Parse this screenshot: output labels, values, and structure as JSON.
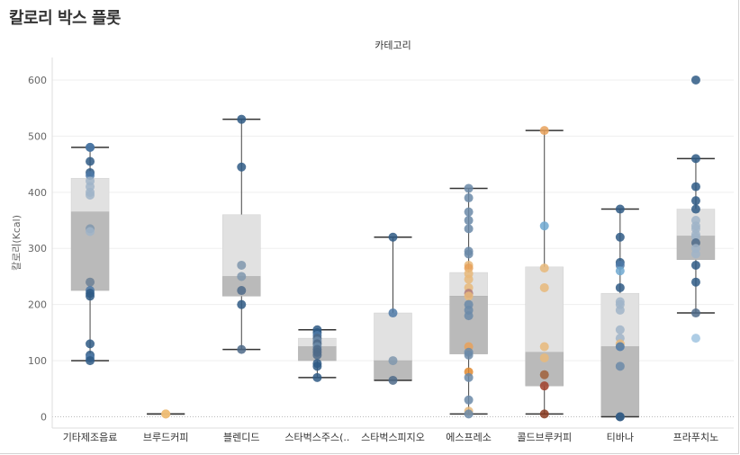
{
  "title": "칼로리 박스 플롯",
  "chart_data": {
    "type": "box",
    "column_header": "카테고리",
    "ylabel": "칼로리(Kcal)",
    "ylim": [
      -20,
      640
    ],
    "yticks": [
      0,
      100,
      200,
      300,
      400,
      500,
      600
    ],
    "grid": true,
    "categories": [
      "기타제조음료",
      "브루드커피",
      "블렌디드",
      "스타벅스주스(..",
      "스타벅스피지오",
      "에스프레소",
      "콜드브루커피",
      "티바나",
      "프라푸치노"
    ],
    "boxes": [
      {
        "min": 100,
        "q1": 225,
        "median": 365,
        "q3": 425,
        "max": 480
      },
      {
        "min": 5,
        "q1": 5,
        "median": 5,
        "q3": 5,
        "max": 5
      },
      {
        "min": 120,
        "q1": 215,
        "median": 250,
        "q3": 360,
        "max": 530
      },
      {
        "min": 70,
        "q1": 100,
        "median": 125,
        "q3": 140,
        "max": 155
      },
      {
        "min": 65,
        "q1": 65,
        "median": 100,
        "q3": 185,
        "max": 320
      },
      {
        "min": 5,
        "q1": 112,
        "median": 215,
        "q3": 257,
        "max": 407
      },
      {
        "min": 5,
        "q1": 55,
        "median": 115,
        "q3": 267,
        "max": 510
      },
      {
        "min": 0,
        "q1": 0,
        "median": 125,
        "q3": 220,
        "max": 370
      },
      {
        "min": 185,
        "q1": 280,
        "median": 322,
        "q3": 370,
        "max": 460
      }
    ],
    "points": [
      [
        [
          480,
          "#2f5a85"
        ],
        [
          480,
          "#4e79a7"
        ],
        [
          455,
          "#2f5a85"
        ],
        [
          435,
          "#2f5a85"
        ],
        [
          430,
          "#4e79a7"
        ],
        [
          420,
          "#a0b4c8"
        ],
        [
          410,
          "#a0b4c8"
        ],
        [
          400,
          "#a0b4c8"
        ],
        [
          395,
          "#a0b4c8"
        ],
        [
          335,
          "#7f96ad"
        ],
        [
          330,
          "#a0b4c8"
        ],
        [
          240,
          "#6b7f94"
        ],
        [
          225,
          "#4e79a7"
        ],
        [
          220,
          "#2f5a85"
        ],
        [
          215,
          "#2f5a85"
        ],
        [
          130,
          "#2f5a85"
        ],
        [
          110,
          "#2f5a85"
        ],
        [
          105,
          "#4e79a7"
        ],
        [
          100,
          "#2f5a85"
        ]
      ],
      [
        [
          5,
          "#e8a15a"
        ],
        [
          5,
          "#f0c27a"
        ]
      ],
      [
        [
          530,
          "#2f5a85"
        ],
        [
          445,
          "#2f5a85"
        ],
        [
          270,
          "#7f96ad"
        ],
        [
          250,
          "#7f96ad"
        ],
        [
          225,
          "#4e6a88"
        ],
        [
          200,
          "#2f5a85"
        ],
        [
          120,
          "#4e6a88"
        ]
      ],
      [
        [
          155,
          "#2f5a85"
        ],
        [
          150,
          "#2f5a85"
        ],
        [
          145,
          "#4e79a7"
        ],
        [
          140,
          "#4e6a88"
        ],
        [
          135,
          "#6b8aa8"
        ],
        [
          130,
          "#4e6a88"
        ],
        [
          125,
          "#6b8aa8"
        ],
        [
          120,
          "#4e6a88"
        ],
        [
          115,
          "#4e6a88"
        ],
        [
          110,
          "#4e6a88"
        ],
        [
          95,
          "#2f5a85"
        ],
        [
          90,
          "#2f5a85"
        ],
        [
          70,
          "#2f5a85"
        ]
      ],
      [
        [
          320,
          "#2f5a85"
        ],
        [
          185,
          "#4e79a7"
        ],
        [
          100,
          "#7f96ad"
        ],
        [
          65,
          "#4e6a88"
        ]
      ],
      [
        [
          407,
          "#6b8aa8"
        ],
        [
          390,
          "#6b8aa8"
        ],
        [
          365,
          "#6b8aa8"
        ],
        [
          350,
          "#6b8aa8"
        ],
        [
          335,
          "#6b8aa8"
        ],
        [
          295,
          "#6b8aa8"
        ],
        [
          290,
          "#6b8aa8"
        ],
        [
          270,
          "#e8b87a"
        ],
        [
          265,
          "#e8a15a"
        ],
        [
          255,
          "#e8b87a"
        ],
        [
          245,
          "#e8b87a"
        ],
        [
          230,
          "#e8b87a"
        ],
        [
          220,
          "#b07a7a"
        ],
        [
          215,
          "#e8b87a"
        ],
        [
          200,
          "#6b8aa8"
        ],
        [
          190,
          "#6b8aa8"
        ],
        [
          180,
          "#6b8aa8"
        ],
        [
          125,
          "#e8a15a"
        ],
        [
          115,
          "#6b8aa8"
        ],
        [
          110,
          "#6b8aa8"
        ],
        [
          80,
          "#e08a30"
        ],
        [
          70,
          "#6b8aa8"
        ],
        [
          30,
          "#6b8aa8"
        ],
        [
          10,
          "#e8b87a"
        ],
        [
          5,
          "#6b8aa8"
        ]
      ],
      [
        [
          510,
          "#e8a15a"
        ],
        [
          340,
          "#6fa8d0"
        ],
        [
          265,
          "#e8b87a"
        ],
        [
          230,
          "#e8b87a"
        ],
        [
          125,
          "#e8b87a"
        ],
        [
          105,
          "#e8b87a"
        ],
        [
          75,
          "#a0603a"
        ],
        [
          55,
          "#a0402a"
        ],
        [
          5,
          "#8a3a20"
        ]
      ],
      [
        [
          370,
          "#2f5a85"
        ],
        [
          320,
          "#2f5a85"
        ],
        [
          275,
          "#2f5a85"
        ],
        [
          270,
          "#4e79a7"
        ],
        [
          260,
          "#6fa8d0"
        ],
        [
          230,
          "#2f5a85"
        ],
        [
          205,
          "#a0b4c8"
        ],
        [
          200,
          "#a0b4c8"
        ],
        [
          190,
          "#a0b4c8"
        ],
        [
          155,
          "#a0b4c8"
        ],
        [
          140,
          "#a0b4c8"
        ],
        [
          130,
          "#e8b87a"
        ],
        [
          125,
          "#4e79a7"
        ],
        [
          90,
          "#6b8aa8"
        ],
        [
          0,
          "#4e6a88"
        ],
        [
          0,
          "#2f5a85"
        ]
      ],
      [
        [
          600,
          "#2f5a85"
        ],
        [
          460,
          "#2f5a85"
        ],
        [
          410,
          "#2f5a85"
        ],
        [
          385,
          "#2f5a85"
        ],
        [
          370,
          "#2f5a85"
        ],
        [
          350,
          "#a0b4c8"
        ],
        [
          340,
          "#a0b4c8"
        ],
        [
          335,
          "#a0b4c8"
        ],
        [
          325,
          "#a0b4c8"
        ],
        [
          320,
          "#a0b4c8"
        ],
        [
          310,
          "#4e6a88"
        ],
        [
          300,
          "#a0b4c8"
        ],
        [
          290,
          "#a0b4c8"
        ],
        [
          270,
          "#2f5a85"
        ],
        [
          240,
          "#2f5a85"
        ],
        [
          185,
          "#4e6a88"
        ],
        [
          140,
          "#a0c4e0"
        ]
      ]
    ]
  }
}
